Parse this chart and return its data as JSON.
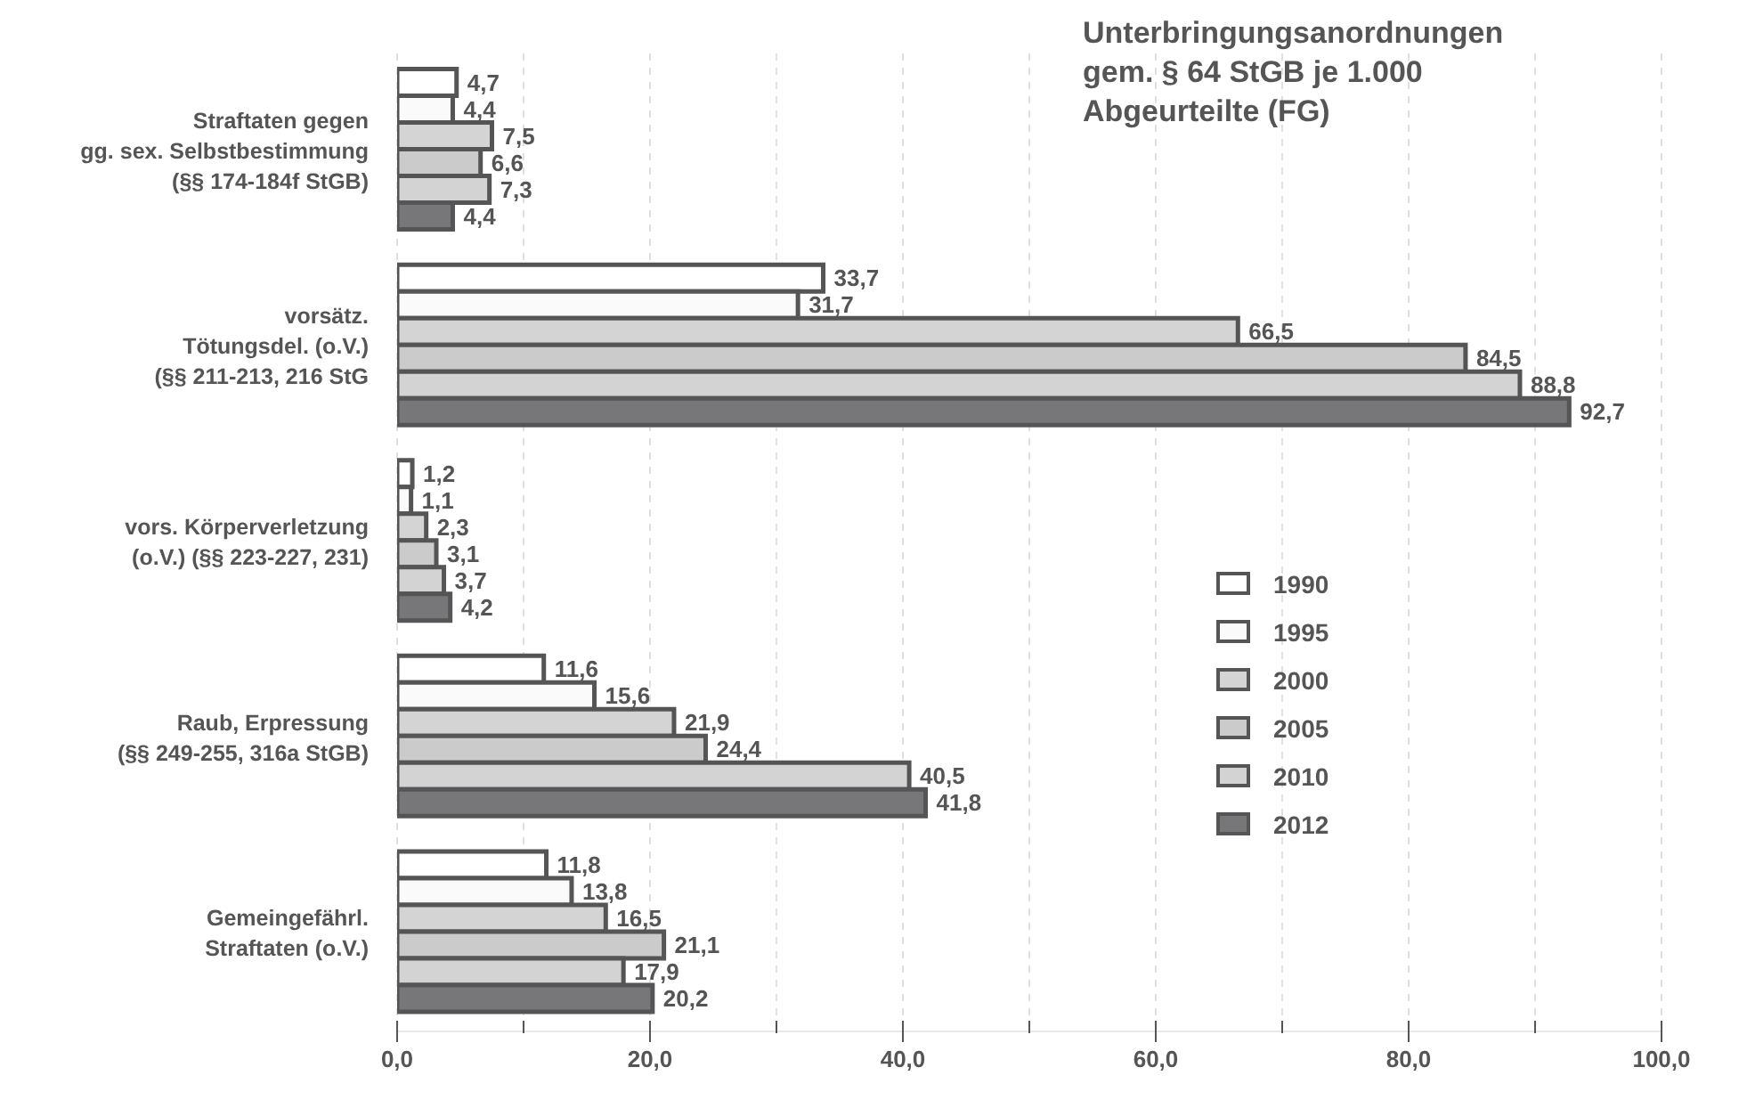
{
  "chart_data": {
    "type": "bar",
    "orientation": "horizontal",
    "title": "Unterbringungsanordnungen\ngem. § 64 StGB je 1.000\nAbgeurteilte (FG)",
    "categories": [
      "Straftaten gegen\ngg. sex. Selbstbestimmung\n(§§ 174-184f StGB)",
      "vorsätz.\nTötungsdel. (o.V.)\n(§§ 211-213, 216 StG",
      "vors. Körperverletzung\n(o.V.) (§§ 223-227, 231)",
      "Raub, Erpressung\n(§§ 249-255, 316a StGB)",
      "Gemeingefährl.\nStraftaten (o.V.)"
    ],
    "series": [
      {
        "name": "1990",
        "color": "#ffffff",
        "values": [
          4.7,
          33.7,
          1.2,
          11.6,
          11.8
        ],
        "value_labels": [
          "4,7",
          "33,7",
          "1,2",
          "11,6",
          "11,8"
        ]
      },
      {
        "name": "1995",
        "color": "#fafafa",
        "values": [
          4.4,
          31.7,
          1.1,
          15.6,
          13.8
        ],
        "value_labels": [
          "4,4",
          "31,7",
          "1,1",
          "15,6",
          "13,8"
        ]
      },
      {
        "name": "2000",
        "color": "#d4d4d4",
        "values": [
          7.5,
          66.5,
          2.3,
          21.9,
          16.5
        ],
        "value_labels": [
          "7,5",
          "66,5",
          "2,3",
          "21,9",
          "16,5"
        ]
      },
      {
        "name": "2005",
        "color": "#cbcbcb",
        "values": [
          6.6,
          84.5,
          3.1,
          24.4,
          21.1
        ],
        "value_labels": [
          "6,6",
          "84,5",
          "3,1",
          "24,4",
          "21,1"
        ]
      },
      {
        "name": "2010",
        "color": "#d3d3d3",
        "values": [
          7.3,
          88.8,
          3.7,
          40.5,
          17.9
        ],
        "value_labels": [
          "7,3",
          "88,8",
          "3,7",
          "40,5",
          "17,9"
        ]
      },
      {
        "name": "2012",
        "color": "#77777a",
        "values": [
          4.4,
          92.7,
          4.2,
          41.8,
          20.2
        ],
        "value_labels": [
          "4,4",
          "92,7",
          "4,2",
          "41,8",
          "20,2"
        ]
      }
    ],
    "xlim": [
      0,
      100
    ],
    "xticks": [
      {
        "value": 0,
        "label": "0,0"
      },
      {
        "value": 10,
        "label": null
      },
      {
        "value": 20,
        "label": "20,0"
      },
      {
        "value": 30,
        "label": null
      },
      {
        "value": 40,
        "label": "40,0"
      },
      {
        "value": 50,
        "label": null
      },
      {
        "value": 60,
        "label": "60,0"
      },
      {
        "value": 70,
        "label": null
      },
      {
        "value": 80,
        "label": "80,0"
      },
      {
        "value": 90,
        "label": null
      },
      {
        "value": 100,
        "label": "100,0"
      }
    ],
    "grid": "x",
    "legend": "right"
  }
}
